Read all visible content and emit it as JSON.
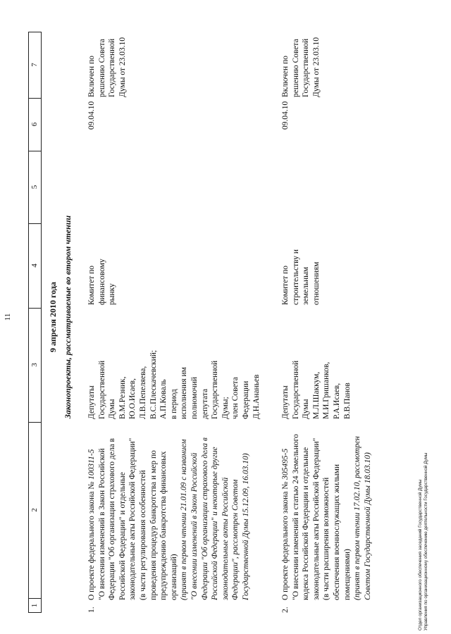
{
  "page_number": "11",
  "header_columns": [
    "1",
    "2",
    "3",
    "4",
    "5",
    "6",
    "7"
  ],
  "day_title": "9 апреля 2010 года",
  "section_title": "Законопроекты, рассматриваемые во втором чтении",
  "rows": [
    {
      "number": "1.",
      "title": [
        [
          [
            "О проекте федерального закона № ",
            false
          ],
          [
            "100311-5",
            true
          ]
        ],
        [
          [
            "\"О внесении изменений в Закон Российской",
            false
          ]
        ],
        [
          [
            "Федерации \"Об организации страхового дела в",
            false
          ]
        ],
        [
          [
            "Российской Федерации\" и отдельные",
            false
          ]
        ],
        [
          [
            "законодательные акты Российской Федерации\"",
            false
          ]
        ],
        [
          [
            "(в части регулирования особенностей",
            false
          ]
        ],
        [
          [
            "проведения процедур банкротства и мер по",
            false
          ]
        ],
        [
          [
            "предупреждению банкротства финансовых",
            false
          ]
        ],
        [
          [
            "организаций)",
            false
          ]
        ],
        [
          [
            "(принят в первом чтении 21.01.09 с названием",
            true
          ]
        ],
        [
          [
            "\"О внесении изменений в Закон Российской",
            true
          ]
        ],
        [
          [
            "Федерации \"Об организации страхового дела в",
            true
          ]
        ],
        [
          [
            "Российской Федерации\" и некоторые другие",
            true
          ]
        ],
        [
          [
            "законодательные акты Российской",
            true
          ]
        ],
        [
          [
            "Федерации\", рассмотрен Советом",
            true
          ]
        ],
        [
          [
            "Государственной Думы 15.12.09, 16.03.10)",
            true
          ]
        ]
      ],
      "authors": [
        "Депутаты",
        "Государственной",
        "Думы",
        "В.М.Резник,",
        "Ю.О.Исаев,",
        "Л.В.Пепеляева,",
        "В.С.Плескачевский;",
        "А.П.Коваль",
        "в период",
        "исполнения им",
        "полномочий",
        "депутата",
        "Государственной",
        "Думы;",
        "член Совета",
        "Федерации",
        "Д.Н.Ананьев"
      ],
      "committee": [
        "Комитет по",
        "финансовому",
        "рынку"
      ],
      "col5": [],
      "date": [
        "09.04.10"
      ],
      "note": [
        "Включен по",
        "решению Совета",
        "Государственной",
        "Думы от 23.03.10"
      ]
    },
    {
      "number": "2.",
      "title": [
        [
          [
            "О проекте федерального закона № ",
            false
          ],
          [
            "305495-5",
            true
          ]
        ],
        [
          [
            "\"О внесении изменений в статью 24 Земельного",
            false
          ]
        ],
        [
          [
            "кодекса Российской Федерации и отдельные",
            false
          ]
        ],
        [
          [
            "законодательные акты Российской Федерации\"",
            false
          ]
        ],
        [
          [
            "(в части расширения возможностей",
            false
          ]
        ],
        [
          [
            "обеспечения военнослужащих жилыми",
            false
          ]
        ],
        [
          [
            "помещениями)",
            false
          ]
        ],
        [
          [
            "(принят в первом чтении 17.02.10, рассмотрен",
            true
          ]
        ],
        [
          [
            "Советом Государственной Думы 18.03.10)",
            true
          ]
        ]
      ],
      "authors": [
        "Депутаты",
        "Государственной",
        "Думы",
        "М.Л.Шаккум,",
        "М.И.Гришанков,",
        "Р.А.Исаев,",
        "В.В.Панов"
      ],
      "committee": [
        "Комитет по",
        "строительству и",
        "земельным",
        "отношениям"
      ],
      "col5": [],
      "date": [
        "09.04.10"
      ],
      "note": [
        "Включен по",
        "решению Совета",
        "Государственной",
        "Думы от 23.03.10"
      ]
    }
  ],
  "footer": [
    "Отдел организационного обеспечения заседаний Государственной Думы",
    "Управления по организационному обеспечению деятельности Государственной Думы"
  ]
}
